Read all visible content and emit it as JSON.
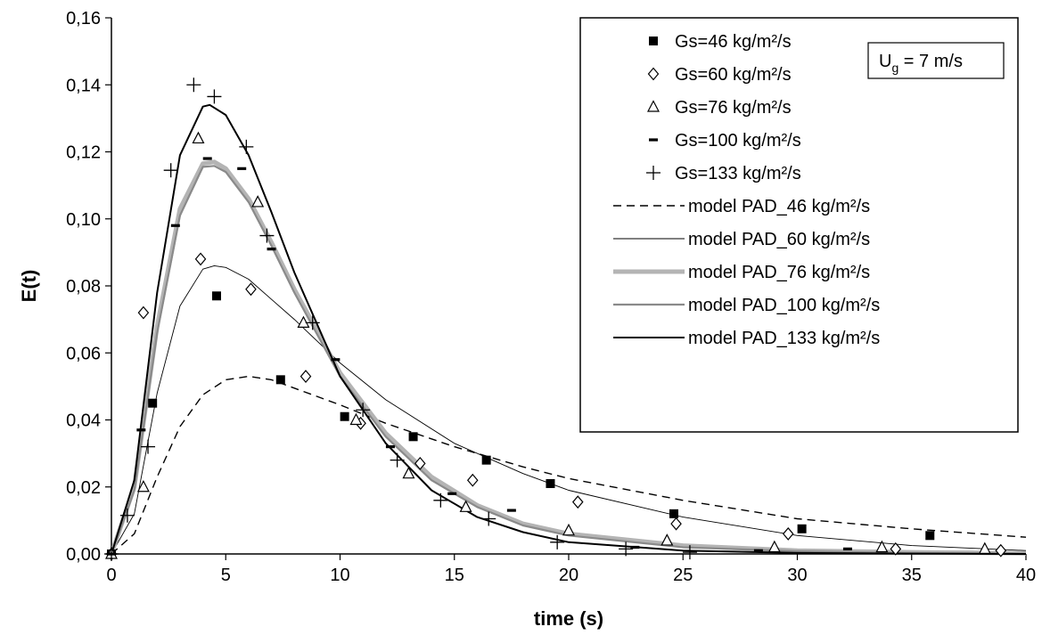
{
  "chart_data": {
    "type": "scatter",
    "xlabel": "time (s)",
    "ylabel": "E(t)",
    "xlim": [
      0,
      40
    ],
    "ylim": [
      0,
      0.16
    ],
    "x_ticks": [
      0,
      5,
      10,
      15,
      20,
      25,
      30,
      35,
      40
    ],
    "y_ticks": [
      0,
      0.02,
      0.04,
      0.06,
      0.08,
      0.1,
      0.12,
      0.14,
      0.16
    ],
    "x_tick_labels": [
      "0",
      "5",
      "10",
      "15",
      "20",
      "25",
      "30",
      "35",
      "40"
    ],
    "y_tick_labels": [
      "0,00",
      "0,02",
      "0,04",
      "0,06",
      "0,08",
      "0,10",
      "0,12",
      "0,14",
      "0,16"
    ],
    "grid": false,
    "legend_position": "top-right",
    "annotation": {
      "main": "U",
      "sub": "g",
      "rest": " = 7 m/s"
    },
    "series": [
      {
        "name": "Gs=46 kg/m²/s",
        "kind": "points",
        "marker": "filled-square",
        "points": [
          [
            0,
            0
          ],
          [
            1.8,
            0.045
          ],
          [
            4.6,
            0.077
          ],
          [
            7.4,
            0.052
          ],
          [
            10.2,
            0.041
          ],
          [
            13.2,
            0.035
          ],
          [
            16.4,
            0.028
          ],
          [
            19.2,
            0.021
          ],
          [
            24.6,
            0.012
          ],
          [
            30.2,
            0.0075
          ],
          [
            35.8,
            0.0055
          ]
        ]
      },
      {
        "name": "Gs=60 kg/m²/s",
        "kind": "points",
        "marker": "open-diamond",
        "points": [
          [
            0,
            0
          ],
          [
            1.4,
            0.072
          ],
          [
            3.9,
            0.088
          ],
          [
            6.1,
            0.079
          ],
          [
            8.5,
            0.053
          ],
          [
            10.9,
            0.039
          ],
          [
            13.5,
            0.027
          ],
          [
            15.8,
            0.022
          ],
          [
            20.4,
            0.0155
          ],
          [
            24.7,
            0.009
          ],
          [
            29.6,
            0.006
          ],
          [
            34.3,
            0.0015
          ],
          [
            38.9,
            0.001
          ]
        ]
      },
      {
        "name": "Gs=76 kg/m²/s",
        "kind": "points",
        "marker": "open-triangle",
        "points": [
          [
            0,
            0
          ],
          [
            1.4,
            0.02
          ],
          [
            3.8,
            0.124
          ],
          [
            6.4,
            0.105
          ],
          [
            8.4,
            0.069
          ],
          [
            10.7,
            0.04
          ],
          [
            13.0,
            0.024
          ],
          [
            15.5,
            0.014
          ],
          [
            20.0,
            0.007
          ],
          [
            24.3,
            0.004
          ],
          [
            29.0,
            0.002
          ],
          [
            33.7,
            0.002
          ],
          [
            38.2,
            0.0015
          ]
        ]
      },
      {
        "name": "Gs=100 kg/m²/s",
        "kind": "points",
        "marker": "dash",
        "points": [
          [
            0,
            0
          ],
          [
            1.3,
            0.037
          ],
          [
            2.8,
            0.098
          ],
          [
            4.2,
            0.118
          ],
          [
            5.7,
            0.115
          ],
          [
            7.0,
            0.091
          ],
          [
            9.8,
            0.058
          ],
          [
            12.2,
            0.032
          ],
          [
            14.9,
            0.018
          ],
          [
            17.5,
            0.013
          ],
          [
            22.9,
            0.002
          ],
          [
            28.3,
            0.001
          ],
          [
            32.2,
            0.0015
          ]
        ]
      },
      {
        "name": "Gs=133 kg/m²/s",
        "kind": "points",
        "marker": "plus",
        "points": [
          [
            0,
            0
          ],
          [
            0.7,
            0.0115
          ],
          [
            1.6,
            0.032
          ],
          [
            2.6,
            0.1145
          ],
          [
            3.6,
            0.14
          ],
          [
            4.5,
            0.1365
          ],
          [
            5.9,
            0.1215
          ],
          [
            6.8,
            0.095
          ],
          [
            8.8,
            0.069
          ],
          [
            11.0,
            0.043
          ],
          [
            12.5,
            0.028
          ],
          [
            14.4,
            0.016
          ],
          [
            16.5,
            0.0105
          ],
          [
            19.5,
            0.0035
          ],
          [
            22.5,
            0.0015
          ],
          [
            25.3,
            0.0005
          ]
        ]
      },
      {
        "name": "model PAD_46 kg/m²/s",
        "kind": "curve",
        "style": "dashed",
        "color": "#000000",
        "points": [
          [
            0,
            0
          ],
          [
            1,
            0.006
          ],
          [
            2,
            0.023
          ],
          [
            3,
            0.038
          ],
          [
            4,
            0.0475
          ],
          [
            5,
            0.052
          ],
          [
            6,
            0.053
          ],
          [
            7,
            0.052
          ],
          [
            8,
            0.0495
          ],
          [
            10,
            0.0445
          ],
          [
            12,
            0.039
          ],
          [
            15,
            0.032
          ],
          [
            18,
            0.026
          ],
          [
            20,
            0.0225
          ],
          [
            25,
            0.016
          ],
          [
            30,
            0.0105
          ],
          [
            35,
            0.0075
          ],
          [
            40,
            0.005
          ]
        ]
      },
      {
        "name": "model PAD_60 kg/m²/s",
        "kind": "curve",
        "style": "thin",
        "color": "#000000",
        "points": [
          [
            0,
            0
          ],
          [
            1,
            0.012
          ],
          [
            2,
            0.048
          ],
          [
            3,
            0.074
          ],
          [
            4,
            0.085
          ],
          [
            4.5,
            0.086
          ],
          [
            5,
            0.0855
          ],
          [
            6,
            0.082
          ],
          [
            7,
            0.076
          ],
          [
            8,
            0.07
          ],
          [
            10,
            0.057
          ],
          [
            12,
            0.046
          ],
          [
            15,
            0.033
          ],
          [
            18,
            0.024
          ],
          [
            20,
            0.019
          ],
          [
            25,
            0.011
          ],
          [
            30,
            0.0055
          ],
          [
            35,
            0.0025
          ],
          [
            40,
            0.001
          ]
        ]
      },
      {
        "name": "model PAD_76 kg/m²/s",
        "kind": "curve",
        "style": "gray-thick",
        "color": "#b4b4b4",
        "points": [
          [
            0,
            0
          ],
          [
            1,
            0.02
          ],
          [
            2,
            0.068
          ],
          [
            3,
            0.103
          ],
          [
            4,
            0.1165
          ],
          [
            4.5,
            0.117
          ],
          [
            5,
            0.115
          ],
          [
            6,
            0.106
          ],
          [
            7,
            0.093
          ],
          [
            8,
            0.079
          ],
          [
            10,
            0.054
          ],
          [
            12,
            0.036
          ],
          [
            14,
            0.023
          ],
          [
            16,
            0.0145
          ],
          [
            18,
            0.009
          ],
          [
            20,
            0.006
          ],
          [
            25,
            0.0025
          ],
          [
            30,
            0.001
          ],
          [
            35,
            0.0005
          ],
          [
            40,
            0.0002
          ]
        ]
      },
      {
        "name": "model PAD_100 kg/m²/s",
        "kind": "curve",
        "style": "gray-dark",
        "color": "#8a8a8a",
        "points": [
          [
            0,
            0
          ],
          [
            1,
            0.019
          ],
          [
            2,
            0.066
          ],
          [
            3,
            0.101
          ],
          [
            4,
            0.1155
          ],
          [
            4.5,
            0.1158
          ],
          [
            5,
            0.114
          ],
          [
            6,
            0.105
          ],
          [
            7,
            0.092
          ],
          [
            8,
            0.078
          ],
          [
            10,
            0.053
          ],
          [
            12,
            0.035
          ],
          [
            14,
            0.022
          ],
          [
            16,
            0.014
          ],
          [
            18,
            0.0085
          ],
          [
            20,
            0.0055
          ],
          [
            25,
            0.002
          ],
          [
            30,
            0.0008
          ],
          [
            35,
            0.0003
          ],
          [
            40,
            0.0001
          ]
        ]
      },
      {
        "name": "model PAD_133 kg/m²/s",
        "kind": "curve",
        "style": "solid",
        "color": "#000000",
        "points": [
          [
            0,
            0
          ],
          [
            1,
            0.022
          ],
          [
            2,
            0.078
          ],
          [
            3,
            0.119
          ],
          [
            4,
            0.1335
          ],
          [
            4.3,
            0.134
          ],
          [
            5,
            0.131
          ],
          [
            6,
            0.119
          ],
          [
            7,
            0.102
          ],
          [
            8,
            0.084
          ],
          [
            10,
            0.053
          ],
          [
            12,
            0.033
          ],
          [
            14,
            0.019
          ],
          [
            16,
            0.011
          ],
          [
            18,
            0.0065
          ],
          [
            20,
            0.0035
          ],
          [
            25,
            0.001
          ],
          [
            30,
            0.0003
          ],
          [
            35,
            0.0001
          ],
          [
            40,
            0
          ]
        ]
      }
    ]
  }
}
